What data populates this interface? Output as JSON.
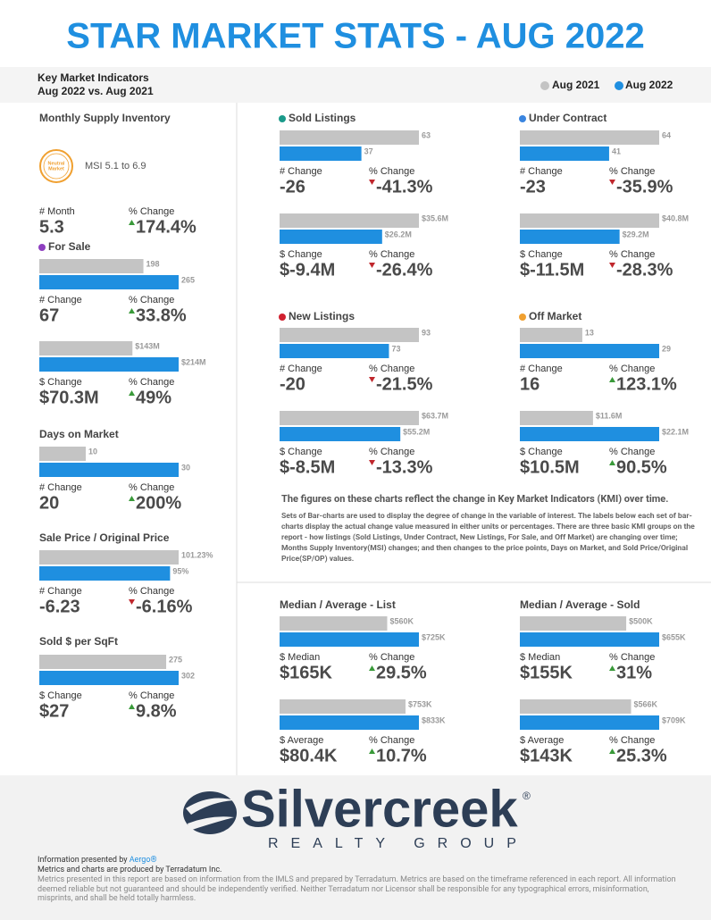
{
  "header": {
    "title": "STAR MARKET STATS - AUG 2022",
    "subtitle": [
      "Key Market Indicators",
      "Aug 2022 vs. Aug 2021"
    ],
    "legend": [
      {
        "name": "Aug 2021",
        "color": "#c4c4c4"
      },
      {
        "name": "Aug 2022",
        "color": "#1f8fe0"
      }
    ]
  },
  "panels": [
    {
      "title": "Monthly Supply Inventory",
      "badge": [
        "Neutral",
        "Market"
      ],
      "range": "MSI 5.1 to 6.9",
      "groups": [
        {
          "stats": [
            {
              "label": "# Month",
              "value": "5.3"
            },
            {
              "label": "% Change",
              "value": "174.4%",
              "trend": "up"
            }
          ]
        }
      ]
    },
    {
      "title": "For Sale",
      "dot": "#8e3fc0",
      "groups": [
        {
          "bars": {
            "values": [
              198,
              265
            ]
          },
          "stats": [
            {
              "label": "# Change",
              "value": "67"
            },
            {
              "label": "% Change",
              "value": "33.8%",
              "trend": "up"
            }
          ]
        },
        {
          "bars": {
            "values": [
              143000000,
              214000000
            ],
            "value_labels": [
              "$143M",
              "$214M"
            ]
          },
          "stats": [
            {
              "label": "$ Change",
              "value": "$70.3M"
            },
            {
              "label": "% Change",
              "value": "49%",
              "trend": "up"
            }
          ]
        }
      ]
    },
    {
      "title": "Days on Market",
      "groups": [
        {
          "bars": {
            "values": [
              10,
              30
            ]
          },
          "stats": [
            {
              "label": "# Change",
              "value": "20"
            },
            {
              "label": "% Change",
              "value": "200%",
              "trend": "up"
            }
          ]
        }
      ]
    },
    {
      "title": "Sale Price / Original Price",
      "groups": [
        {
          "bars": {
            "values": [
              101.23,
              95
            ],
            "value_labels": [
              "101.23%",
              "95%"
            ]
          },
          "stats": [
            {
              "label": "# Change",
              "value": "-6.23"
            },
            {
              "label": "% Change",
              "value": "-6.16%",
              "trend": "down"
            }
          ]
        }
      ]
    },
    {
      "title": "Sold $ per SqFt",
      "groups": [
        {
          "bars": {
            "values": [
              275,
              302
            ]
          },
          "stats": [
            {
              "label": "$ Change",
              "value": "$27"
            },
            {
              "label": "% Change",
              "value": "9.8%",
              "trend": "up"
            }
          ]
        }
      ]
    },
    {
      "title": "Sold Listings",
      "dot": "#1a9a8a",
      "groups": [
        {
          "bars": {
            "values": [
              63,
              37
            ]
          },
          "stats": [
            {
              "label": "# Change",
              "value": "-26"
            },
            {
              "label": "% Change",
              "value": "-41.3%",
              "trend": "down"
            }
          ]
        },
        {
          "bars": {
            "values": [
              35600000,
              26200000
            ],
            "value_labels": [
              "$35.6M",
              "$26.2M"
            ]
          },
          "stats": [
            {
              "label": "$ Change",
              "value": "$-9.4M"
            },
            {
              "label": "% Change",
              "value": "-26.4%",
              "trend": "down"
            }
          ]
        }
      ]
    },
    {
      "title": "Under Contract",
      "dot": "#3a85e0",
      "groups": [
        {
          "bars": {
            "values": [
              64,
              41
            ]
          },
          "stats": [
            {
              "label": "# Change",
              "value": "-23"
            },
            {
              "label": "% Change",
              "value": "-35.9%",
              "trend": "down"
            }
          ]
        },
        {
          "bars": {
            "values": [
              40800000,
              29200000
            ],
            "value_labels": [
              "$40.8M",
              "$29.2M"
            ]
          },
          "stats": [
            {
              "label": "$ Change",
              "value": "$-11.5M"
            },
            {
              "label": "% Change",
              "value": "-28.3%",
              "trend": "down"
            }
          ]
        }
      ]
    },
    {
      "title": "New Listings",
      "dot": "#d0202f",
      "groups": [
        {
          "bars": {
            "values": [
              93,
              73
            ]
          },
          "stats": [
            {
              "label": "# Change",
              "value": "-20"
            },
            {
              "label": "% Change",
              "value": "-21.5%",
              "trend": "down"
            }
          ]
        },
        {
          "bars": {
            "values": [
              63700000,
              55200000
            ],
            "value_labels": [
              "$63.7M",
              "$55.2M"
            ]
          },
          "stats": [
            {
              "label": "$ Change",
              "value": "$-8.5M"
            },
            {
              "label": "% Change",
              "value": "-13.3%",
              "trend": "down"
            }
          ]
        }
      ]
    },
    {
      "title": "Off Market",
      "dot": "#f0a030",
      "groups": [
        {
          "bars": {
            "values": [
              13,
              29
            ]
          },
          "stats": [
            {
              "label": "# Change",
              "value": "16"
            },
            {
              "label": "% Change",
              "value": "123.1%",
              "trend": "up"
            }
          ]
        },
        {
          "bars": {
            "values": [
              11600000,
              22100000
            ],
            "value_labels": [
              "$11.6M",
              "$22.1M"
            ]
          },
          "stats": [
            {
              "label": "$ Change",
              "value": "$10.5M"
            },
            {
              "label": "% Change",
              "value": "90.5%",
              "trend": "up"
            }
          ]
        }
      ]
    },
    {
      "title": "Median / Average - List",
      "groups": [
        {
          "bars": {
            "values": [
              560000,
              725000
            ],
            "value_labels": [
              "$560K",
              "$725K"
            ]
          },
          "stats": [
            {
              "label": "$ Median",
              "value": "$165K"
            },
            {
              "label": "% Change",
              "value": "29.5%",
              "trend": "up"
            }
          ]
        },
        {
          "bars": {
            "values": [
              753000,
              833000
            ],
            "value_labels": [
              "$753K",
              "$833K"
            ]
          },
          "stats": [
            {
              "label": "$ Average",
              "value": "$80.4K"
            },
            {
              "label": "% Change",
              "value": "10.7%",
              "trend": "up"
            }
          ]
        }
      ]
    },
    {
      "title": "Median / Average - Sold",
      "groups": [
        {
          "bars": {
            "values": [
              500000,
              655000
            ],
            "value_labels": [
              "$500K",
              "$655K"
            ]
          },
          "stats": [
            {
              "label": "$ Median",
              "value": "$155K"
            },
            {
              "label": "% Change",
              "value": "31%",
              "trend": "up"
            }
          ]
        },
        {
          "bars": {
            "values": [
              566000,
              709000
            ],
            "value_labels": [
              "$566K",
              "$709K"
            ]
          },
          "stats": [
            {
              "label": "$ Average",
              "value": "$143K"
            },
            {
              "label": "% Change",
              "value": "25.3%",
              "trend": "up"
            }
          ]
        }
      ]
    }
  ],
  "note": {
    "heading": "The figures on these charts reflect the change in Key Market Indicators (KMI) over time.",
    "body": "Sets of Bar-charts are used to display the degree of change in the variable of interest. The labels below each set of bar-charts display the actual change value measured in either units or percentages. There are three basic KMI groups on the report - how listings (Sold Listings, Under Contract, New Listings, For Sale, and Off Market) are changing over time; Months Supply Inventory(MSI) changes; and then changes to the price points, Days on Market, and Sold Price/Original Price(SP/OP) values."
  },
  "footer": {
    "brand": "Silvercreek",
    "mark": "®",
    "tagline": "REALTY GROUP",
    "presented_by": "Information presented by ",
    "presenter": "Aergo®",
    "produced_by": "Metrics and charts are produced by Terradatum Inc.",
    "disclaimer": "Metrics presented in this report are based on information from the IMLS and prepared by Terradatum. Metrics are based on the timeframe referenced in each report. All information deemed reliable but not guaranteed and should be independently verified. Neither Terradatum nor Licensor shall be responsible for any typographical errors, misinformation, misprints, and shall be held totally harmless."
  }
}
